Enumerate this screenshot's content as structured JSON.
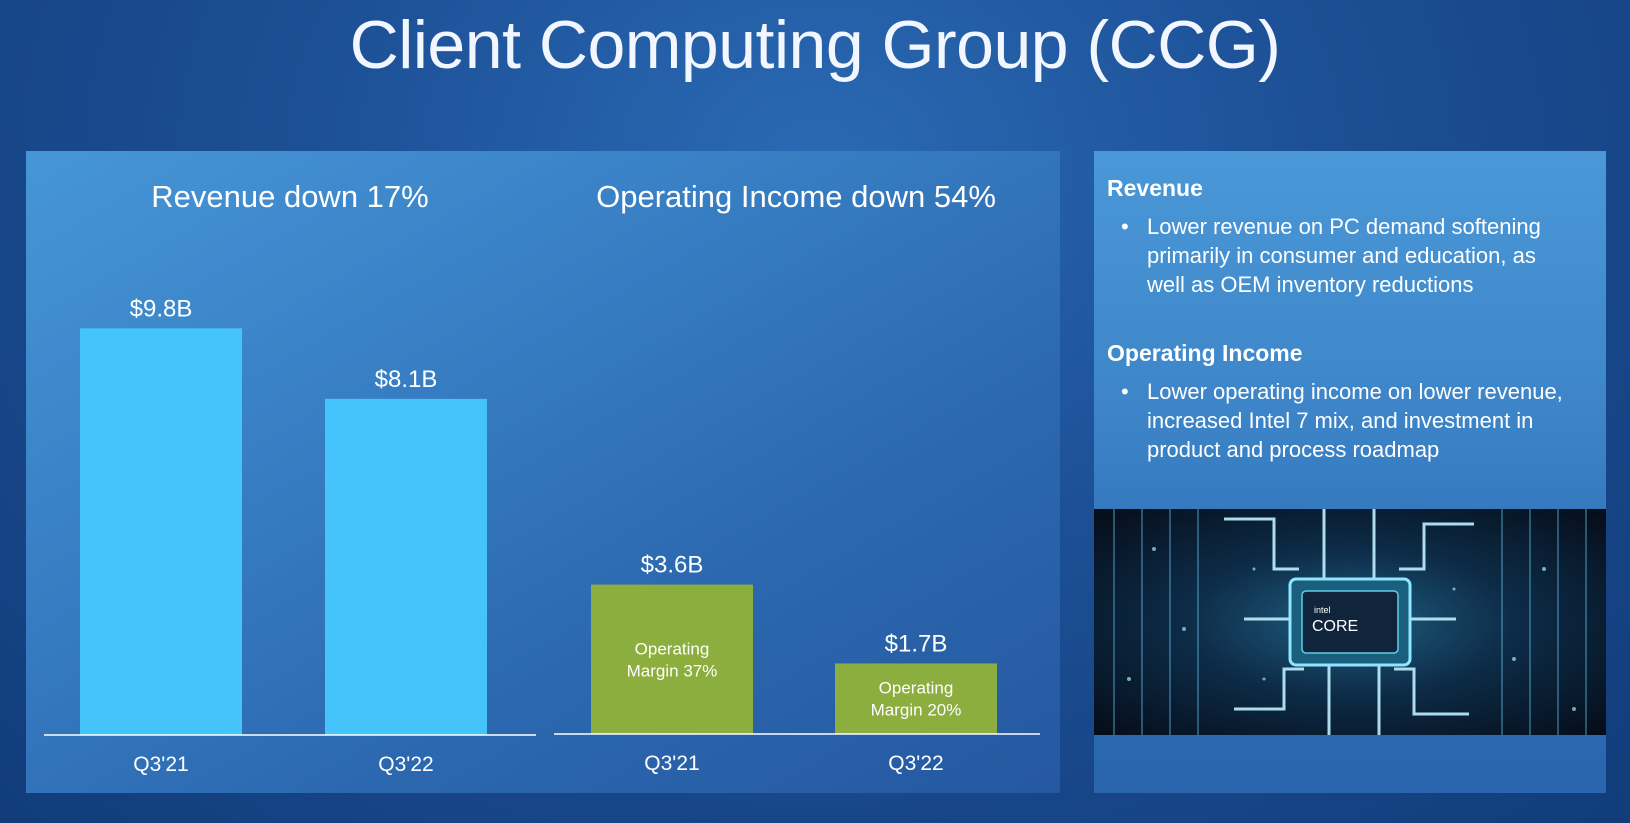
{
  "title": "Client Computing Group (CCG)",
  "chart_data": [
    {
      "type": "bar",
      "title": "Revenue down 17%",
      "categories": [
        "Q3'21",
        "Q3'22"
      ],
      "values": [
        9.8,
        8.1
      ],
      "value_labels": [
        "$9.8B",
        "$8.1B"
      ],
      "inner_labels": [],
      "color": "#45c4fc",
      "ylim": [
        0,
        10
      ],
      "grid": false
    },
    {
      "type": "bar",
      "title": "Operating Income down 54%",
      "categories": [
        "Q3'21",
        "Q3'22"
      ],
      "values": [
        3.6,
        1.7
      ],
      "value_labels": [
        "$3.6B",
        "$1.7B"
      ],
      "inner_labels": [
        [
          "Operating",
          "Margin 37%"
        ],
        [
          "Operating",
          "Margin 20%"
        ]
      ],
      "color": "#8cae3e",
      "ylim": [
        0,
        10
      ],
      "grid": false
    }
  ],
  "sidebar": {
    "sections": [
      {
        "heading": "Revenue",
        "bullet_lines": [
          "Lower revenue on PC demand softening",
          "primarily in consumer and education, as",
          "well as OEM inventory reductions"
        ]
      },
      {
        "heading": "Operating Income",
        "bullet_lines": [
          "Lower operating income on lower revenue,",
          "increased Intel 7 mix, and investment in",
          "product and process roadmap"
        ]
      }
    ],
    "image": {
      "subject": "intel-core-chip-render",
      "logo_small": "intel",
      "logo_large": "CORE"
    }
  },
  "colors": {
    "revenue_bar": "#45c4fc",
    "income_bar": "#8cae3e",
    "panel": "#3a82c7"
  }
}
